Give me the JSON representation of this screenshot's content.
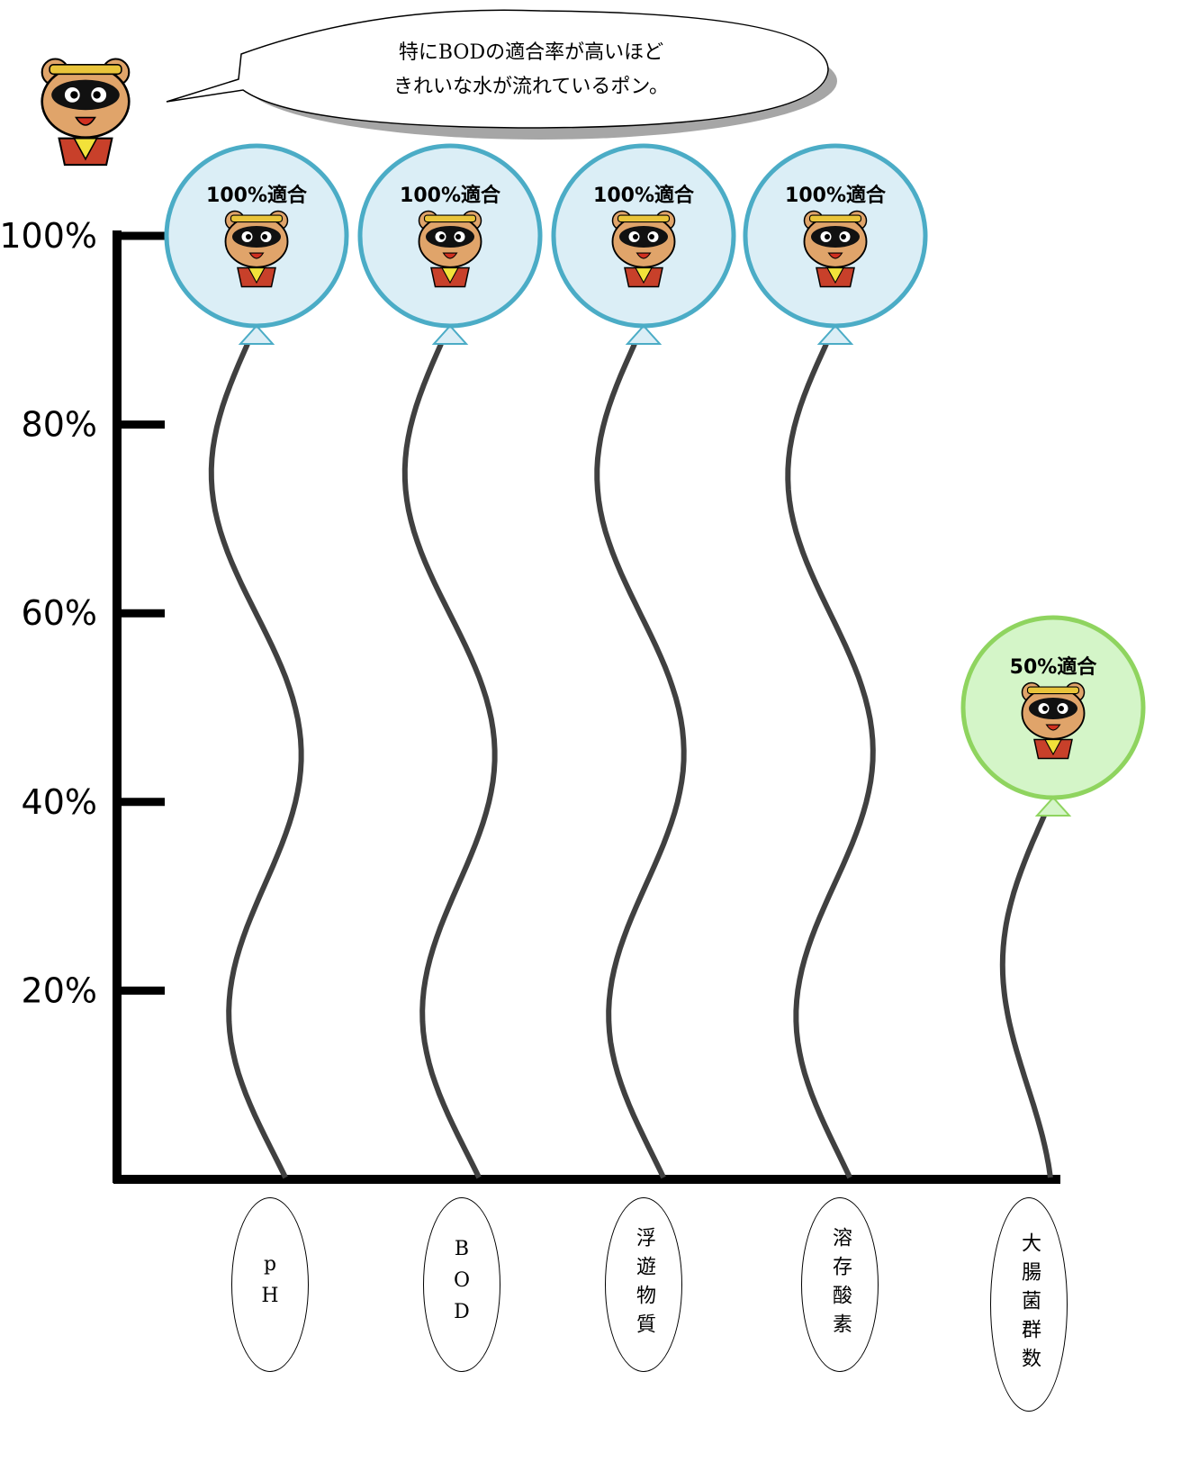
{
  "chart_data": {
    "type": "balloon",
    "annotations": [
      "特にBODの適合率が高いほど",
      "きれいな水が流れているポン。"
    ],
    "categories": [
      "pH",
      "BOD",
      "浮遊物質",
      "溶存酸素",
      "大腸菌群数"
    ],
    "values": [
      100,
      100,
      100,
      100,
      50
    ],
    "value_labels": [
      "100%適合",
      "100%適合",
      "100%適合",
      "100%適合",
      "50%適合"
    ],
    "colors": [
      "#4bacc6",
      "#4bacc6",
      "#4bacc6",
      "#4bacc6",
      "#8fd45f"
    ],
    "ylim": [
      0,
      100
    ],
    "yticks": [
      {
        "value": 20,
        "label": "20%"
      },
      {
        "value": 40,
        "label": "40%"
      },
      {
        "value": 60,
        "label": "60%"
      },
      {
        "value": 80,
        "label": "80%"
      },
      {
        "value": 100,
        "label": "100%"
      }
    ]
  }
}
